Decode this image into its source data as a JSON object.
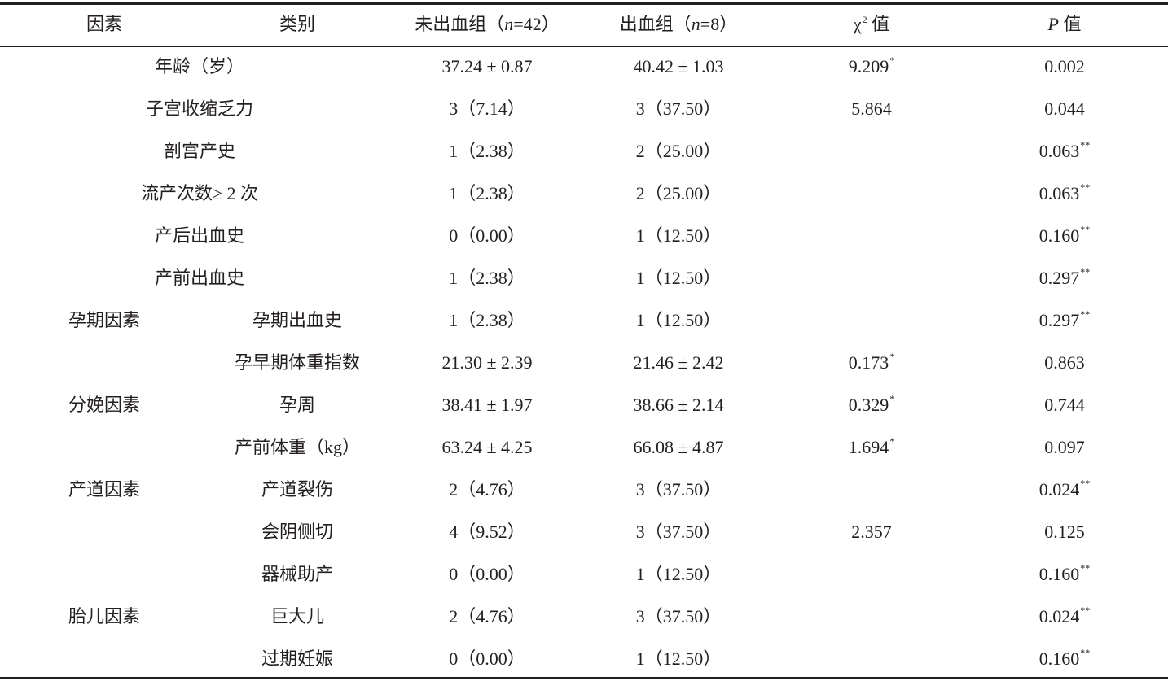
{
  "table": {
    "headers": {
      "factor": "因素",
      "category": "类别",
      "group_a": {
        "pre": "未出血组（",
        "n_label": "n",
        "n_value": "=42）"
      },
      "group_b": {
        "pre": "出血组（",
        "n_label": "n",
        "n_value": "=8）"
      },
      "chi": {
        "symbol": "χ",
        "sup": "2",
        "post": "值"
      },
      "p": {
        "symbol": "P",
        "post": " 值"
      }
    },
    "rows": [
      {
        "factor": "",
        "category": "年龄（岁）",
        "span": true,
        "a": "37.24 ± 0.87",
        "b": "40.42 ± 1.03",
        "chi": "9.209",
        "chi_mark": "*",
        "p": "0.002",
        "p_mark": ""
      },
      {
        "factor": "",
        "category": "子宫收缩乏力",
        "span": true,
        "a": "3（7.14）",
        "b": "3（37.50）",
        "chi": "5.864",
        "chi_mark": "",
        "p": "0.044",
        "p_mark": ""
      },
      {
        "factor": "",
        "category": "剖宫产史",
        "span": true,
        "a": "1（2.38）",
        "b": "2（25.00）",
        "chi": "",
        "chi_mark": "",
        "p": "0.063",
        "p_mark": "**"
      },
      {
        "factor": "",
        "category": "流产次数≥ 2 次",
        "span": true,
        "a": "1（2.38）",
        "b": "2（25.00）",
        "chi": "",
        "chi_mark": "",
        "p": "0.063",
        "p_mark": "**"
      },
      {
        "factor": "",
        "category": "产后出血史",
        "span": true,
        "a": "0（0.00）",
        "b": "1（12.50）",
        "chi": "",
        "chi_mark": "",
        "p": "0.160",
        "p_mark": "**"
      },
      {
        "factor": "",
        "category": "产前出血史",
        "span": true,
        "a": "1（2.38）",
        "b": "1（12.50）",
        "chi": "",
        "chi_mark": "",
        "p": "0.297",
        "p_mark": "**"
      },
      {
        "factor": "孕期因素",
        "category": "孕期出血史",
        "span": false,
        "a": "1（2.38）",
        "b": "1（12.50）",
        "chi": "",
        "chi_mark": "",
        "p": "0.297",
        "p_mark": "**"
      },
      {
        "factor": "",
        "category": "孕早期体重指数",
        "span": false,
        "a": "21.30 ± 2.39",
        "b": "21.46 ± 2.42",
        "chi": "0.173",
        "chi_mark": "*",
        "p": "0.863",
        "p_mark": ""
      },
      {
        "factor": "分娩因素",
        "category": "孕周",
        "span": false,
        "a": "38.41 ± 1.97",
        "b": "38.66 ± 2.14",
        "chi": "0.329",
        "chi_mark": "*",
        "p": "0.744",
        "p_mark": ""
      },
      {
        "factor": "",
        "category": "产前体重（kg）",
        "span": false,
        "a": "63.24 ± 4.25",
        "b": "66.08 ± 4.87",
        "chi": "1.694",
        "chi_mark": "*",
        "p": "0.097",
        "p_mark": ""
      },
      {
        "factor": "产道因素",
        "category": "产道裂伤",
        "span": false,
        "a": "2（4.76）",
        "b": "3（37.50）",
        "chi": "",
        "chi_mark": "",
        "p": "0.024",
        "p_mark": "**"
      },
      {
        "factor": "",
        "category": "会阴侧切",
        "span": false,
        "a": "4（9.52）",
        "b": "3（37.50）",
        "chi": "2.357",
        "chi_mark": "",
        "p": "0.125",
        "p_mark": ""
      },
      {
        "factor": "",
        "category": "器械助产",
        "span": false,
        "a": "0（0.00）",
        "b": "1（12.50）",
        "chi": "",
        "chi_mark": "",
        "p": "0.160",
        "p_mark": "**"
      },
      {
        "factor": "胎儿因素",
        "category": "巨大儿",
        "span": false,
        "a": "2（4.76）",
        "b": "3（37.50）",
        "chi": "",
        "chi_mark": "",
        "p": "0.024",
        "p_mark": "**"
      },
      {
        "factor": "",
        "category": "过期妊娠",
        "span": false,
        "a": "0（0.00）",
        "b": "1（12.50）",
        "chi": "",
        "chi_mark": "",
        "p": "0.160",
        "p_mark": "**"
      }
    ]
  }
}
